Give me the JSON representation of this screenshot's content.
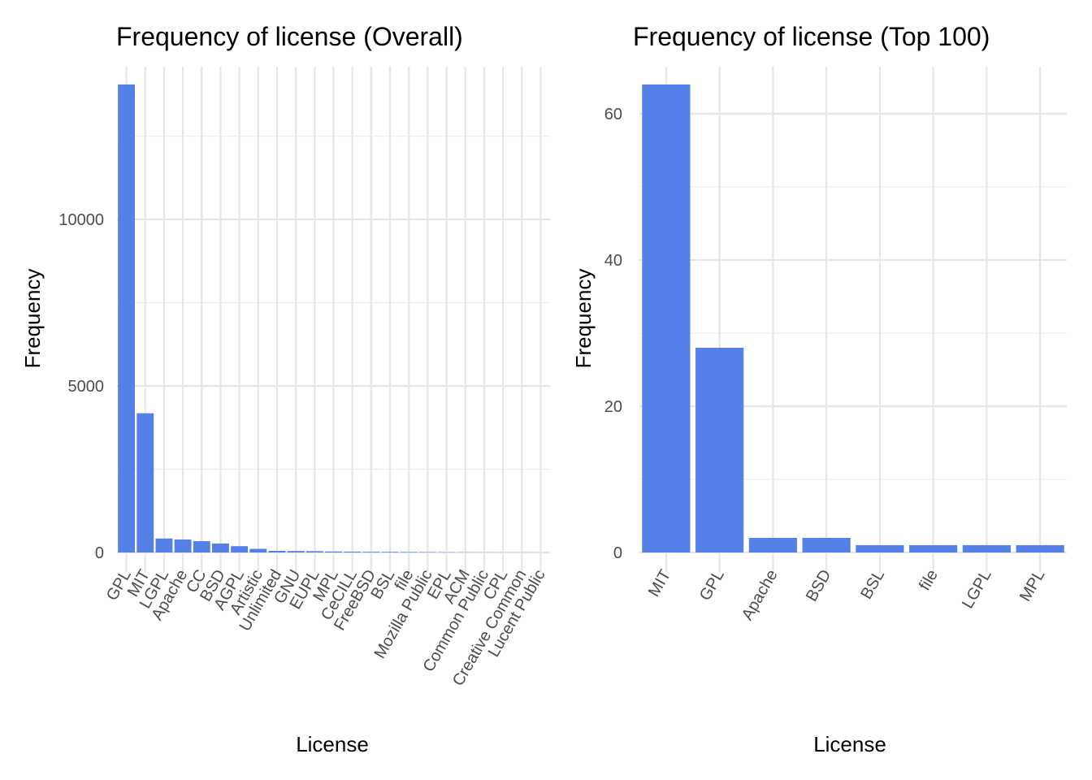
{
  "chart_data": [
    {
      "type": "bar",
      "title": "Frequency of license (Overall)",
      "xlabel": "License",
      "ylabel": "Frequency",
      "categories": [
        "GPL",
        "MIT",
        "LGPL",
        "Apache",
        "CC",
        "BSD",
        "AGPL",
        "Artistic",
        "Unlimited",
        "GNU",
        "EUPL",
        "MPL",
        "CeCILL",
        "FreeBSD",
        "BSL",
        "file",
        "Mozilla Public",
        "EPL",
        "ACM",
        "Common Public",
        "CPL",
        "Creative Common",
        "Lucent Public"
      ],
      "values": [
        14050,
        4180,
        420,
        390,
        340,
        270,
        190,
        110,
        50,
        45,
        40,
        30,
        25,
        20,
        18,
        15,
        12,
        8,
        5,
        4,
        3,
        2,
        1
      ],
      "ylim": [
        0,
        14050
      ],
      "yticks": [
        0,
        5000,
        10000
      ],
      "color": "#5480e8",
      "grid": true
    },
    {
      "type": "bar",
      "title": "Frequency of license (Top 100)",
      "xlabel": "License",
      "ylabel": "Frequency",
      "categories": [
        "MIT",
        "GPL",
        "Apache",
        "BSD",
        "BSL",
        "file",
        "LGPL",
        "MPL"
      ],
      "values": [
        64,
        28,
        2,
        2,
        1,
        1,
        1,
        1
      ],
      "ylim": [
        0,
        64
      ],
      "yticks": [
        0,
        20,
        40,
        60
      ],
      "color": "#5480e8",
      "grid": true
    }
  ]
}
